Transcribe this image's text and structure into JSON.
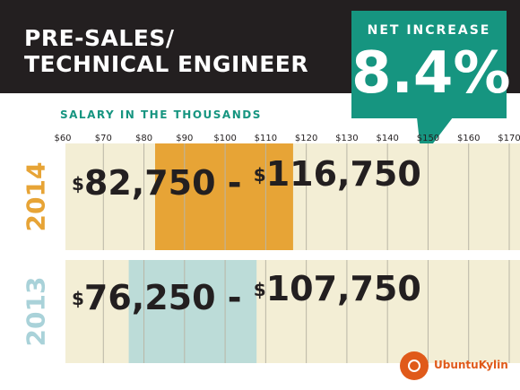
{
  "title": "PRE-SALES/\nTECHNICAL ENGINEER",
  "net_increase": {
    "label": "NET INCREASE",
    "value": "8.4%"
  },
  "colors": {
    "background": "#ffffff",
    "header": "#231f20",
    "accent_teal": "#169580",
    "panel": "#f3eed5",
    "grid": "#b9b6a6",
    "bar_2014": "#e7a436",
    "bar_2013": "#bcdcd8",
    "text": "#231f20",
    "year_2014": "#e7a436",
    "year_2013": "#a9d2d9"
  },
  "chart_data": {
    "type": "bar",
    "orientation": "horizontal-range",
    "axis_title": "SALARY IN THE THOUSANDS",
    "xticks": [
      "$60",
      "$70",
      "$80",
      "$90",
      "$100",
      "$110",
      "$120",
      "$130",
      "$140",
      "$150",
      "$160",
      "$170"
    ],
    "xlim": [
      60,
      170
    ],
    "grid": true,
    "rows": [
      {
        "year": "2014",
        "low": 82.75,
        "high": 116.75,
        "label_low": "82,750",
        "label_high": "116,750",
        "currency": "$"
      },
      {
        "year": "2013",
        "low": 76.25,
        "high": 107.75,
        "label_low": "76,250",
        "label_high": "107,750",
        "currency": "$"
      }
    ]
  },
  "watermark": {
    "text": "UbuntuKylin"
  }
}
